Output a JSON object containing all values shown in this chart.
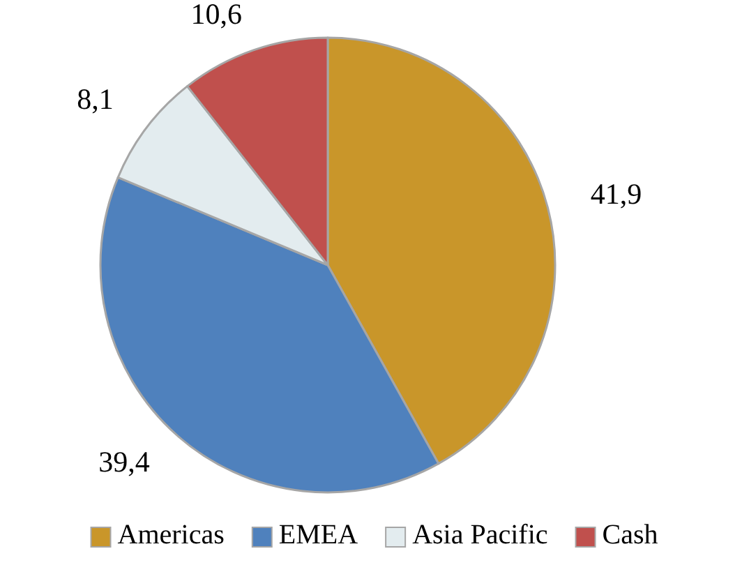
{
  "chart_data": {
    "type": "pie",
    "categories": [
      "Americas",
      "EMEA",
      "Asia Pacific",
      "Cash"
    ],
    "values": [
      41.9,
      39.4,
      8.1,
      10.6
    ],
    "value_labels": [
      "41,9",
      "39,4",
      "8,1",
      "10,6"
    ],
    "colors": [
      "#c9962a",
      "#4f81bd",
      "#e3ecef",
      "#c0504d"
    ],
    "legend": "bottom"
  }
}
